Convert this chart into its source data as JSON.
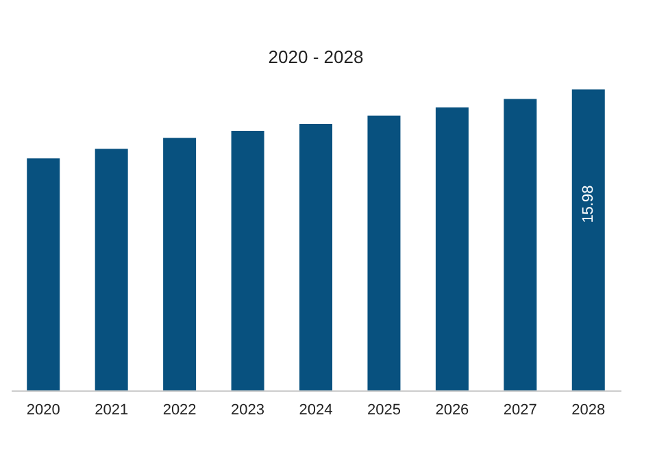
{
  "chart_data": {
    "type": "bar",
    "title": "2020 - 2028",
    "categories": [
      "2020",
      "2021",
      "2022",
      "2023",
      "2024",
      "2025",
      "2026",
      "2027",
      "2028"
    ],
    "values": [
      12.32,
      12.83,
      13.41,
      13.78,
      14.15,
      14.59,
      15.03,
      15.47,
      15.98
    ],
    "value_labels": [
      null,
      null,
      null,
      null,
      null,
      null,
      null,
      null,
      "15.98"
    ],
    "color": "#08517f",
    "grid": false
  }
}
